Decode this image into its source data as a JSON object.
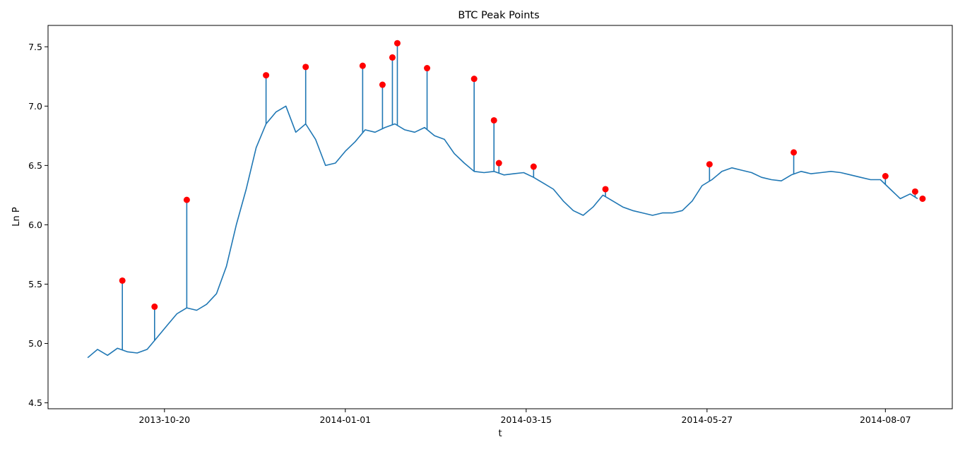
{
  "chart_data": {
    "type": "line",
    "title": "BTC Peak Points",
    "xlabel": "t",
    "ylabel": "Ln P",
    "xlim": [
      "2013-09-03",
      "2014-09-03"
    ],
    "ylim": [
      4.45,
      7.68
    ],
    "xticks": [
      "2013-10-20",
      "2014-01-01",
      "2014-03-15",
      "2014-05-27",
      "2014-08-07"
    ],
    "yticks": [
      4.5,
      5.0,
      5.5,
      6.0,
      6.5,
      7.0,
      7.5
    ],
    "grid": false,
    "line_color": "#1f77b4",
    "marker_color": "#ff0000",
    "series": [
      {
        "kind": "line",
        "x": [
          "2013-09-19",
          "2013-09-23",
          "2013-09-27",
          "2013-10-01",
          "2013-10-05",
          "2013-10-09",
          "2013-10-13",
          "2013-10-17",
          "2013-10-21",
          "2013-10-25",
          "2013-10-29",
          "2013-11-02",
          "2013-11-06",
          "2013-11-10",
          "2013-11-14",
          "2013-11-18",
          "2013-11-22",
          "2013-11-26",
          "2013-11-30",
          "2013-12-04",
          "2013-12-08",
          "2013-12-12",
          "2013-12-16",
          "2013-12-20",
          "2013-12-24",
          "2013-12-28",
          "2014-01-01",
          "2014-01-05",
          "2014-01-09",
          "2014-01-13",
          "2014-01-17",
          "2014-01-21",
          "2014-01-25",
          "2014-01-29",
          "2014-02-02",
          "2014-02-06",
          "2014-02-10",
          "2014-02-14",
          "2014-02-18",
          "2014-02-22",
          "2014-02-26",
          "2014-03-02",
          "2014-03-06",
          "2014-03-10",
          "2014-03-14",
          "2014-03-18",
          "2014-03-22",
          "2014-03-26",
          "2014-03-30",
          "2014-04-03",
          "2014-04-07",
          "2014-04-11",
          "2014-04-15",
          "2014-04-19",
          "2014-04-23",
          "2014-04-27",
          "2014-05-01",
          "2014-05-05",
          "2014-05-09",
          "2014-05-13",
          "2014-05-17",
          "2014-05-21",
          "2014-05-25",
          "2014-05-29",
          "2014-06-02",
          "2014-06-06",
          "2014-06-10",
          "2014-06-14",
          "2014-06-18",
          "2014-06-22",
          "2014-06-26",
          "2014-06-30",
          "2014-07-04",
          "2014-07-08",
          "2014-07-12",
          "2014-07-16",
          "2014-07-20",
          "2014-07-24",
          "2014-07-28",
          "2014-08-01",
          "2014-08-05",
          "2014-08-09",
          "2014-08-13",
          "2014-08-17",
          "2014-08-20"
        ],
        "y": [
          4.88,
          4.95,
          4.9,
          4.96,
          4.93,
          4.92,
          4.95,
          5.05,
          5.15,
          5.25,
          5.3,
          5.28,
          5.33,
          5.42,
          5.65,
          6.0,
          6.3,
          6.65,
          6.85,
          6.95,
          7.0,
          6.78,
          6.85,
          6.72,
          6.5,
          6.52,
          6.62,
          6.7,
          6.8,
          6.78,
          6.82,
          6.85,
          6.8,
          6.78,
          6.82,
          6.75,
          6.72,
          6.6,
          6.52,
          6.45,
          6.44,
          6.45,
          6.42,
          6.43,
          6.44,
          6.4,
          6.35,
          6.3,
          6.2,
          6.12,
          6.08,
          6.15,
          6.25,
          6.2,
          6.15,
          6.12,
          6.1,
          6.08,
          6.1,
          6.1,
          6.12,
          6.2,
          6.33,
          6.38,
          6.45,
          6.48,
          6.46,
          6.44,
          6.4,
          6.38,
          6.37,
          6.42,
          6.45,
          6.43,
          6.44,
          6.45,
          6.44,
          6.42,
          6.4,
          6.38,
          6.38,
          6.3,
          6.22,
          6.26,
          6.22
        ]
      },
      {
        "kind": "peaks",
        "x": [
          "2013-10-03",
          "2013-10-16",
          "2013-10-29",
          "2013-11-30",
          "2013-12-16",
          "2014-01-08",
          "2014-01-16",
          "2014-01-20",
          "2014-01-22",
          "2014-02-03",
          "2014-02-22",
          "2014-03-02",
          "2014-03-04",
          "2014-03-18",
          "2014-04-16",
          "2014-05-28",
          "2014-07-01",
          "2014-08-07",
          "2014-08-19",
          "2014-08-22"
        ],
        "y": [
          5.53,
          5.31,
          6.21,
          7.26,
          7.33,
          7.34,
          7.18,
          7.41,
          7.53,
          7.32,
          7.23,
          6.88,
          6.52,
          6.49,
          6.3,
          6.51,
          6.61,
          6.41,
          6.28,
          6.22
        ]
      }
    ]
  }
}
